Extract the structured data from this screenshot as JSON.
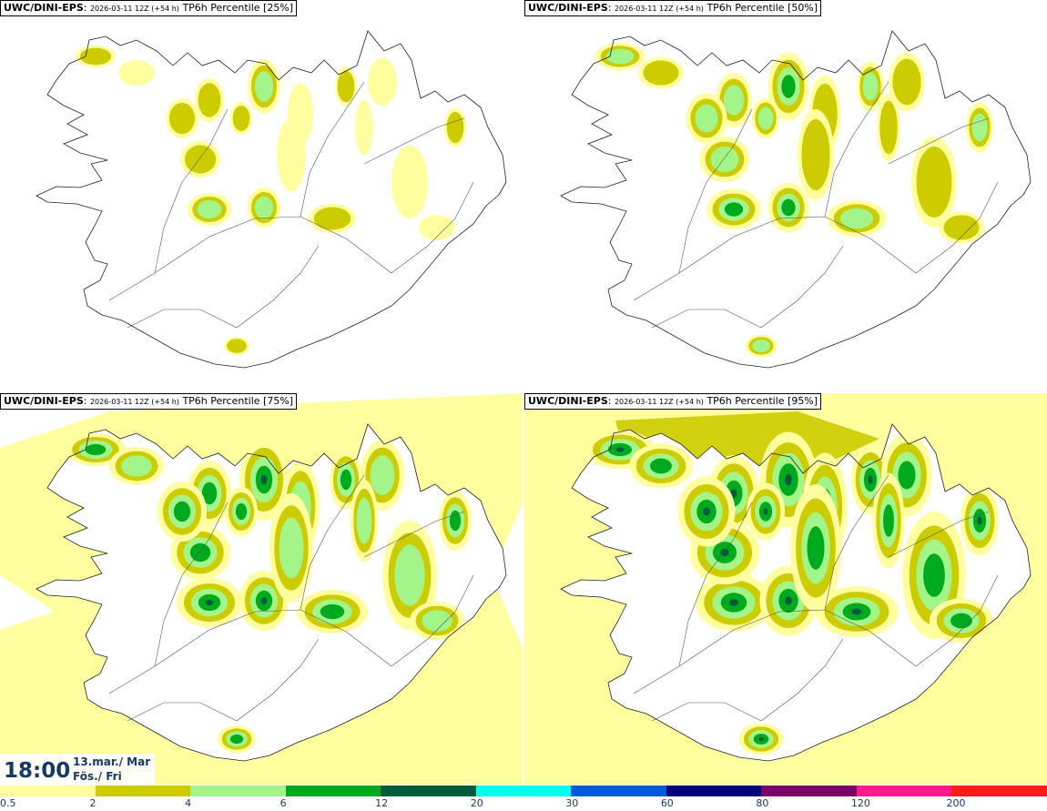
{
  "panels": [
    {
      "model": "UWC/DINI-EPS",
      "run": "2026-03-11 12Z (+54 h)",
      "field": "TP6h Percentile [25%]",
      "coverage": 0.25
    },
    {
      "model": "UWC/DINI-EPS",
      "run": "2026-03-11 12Z (+54 h)",
      "field": "TP6h Percentile [50%]",
      "coverage": 0.5
    },
    {
      "model": "UWC/DINI-EPS",
      "run": "2026-03-11 12Z (+54 h)",
      "field": "TP6h Percentile [75%]",
      "coverage": 0.75
    },
    {
      "model": "UWC/DINI-EPS",
      "run": "2026-03-11 12Z (+54 h)",
      "field": "TP6h Percentile [95%]",
      "coverage": 0.95
    }
  ],
  "valid_time": {
    "time": "18:00",
    "date": "13.mar./ Mar",
    "weekday": "Fös./ Fri"
  },
  "colorbar": {
    "levels": [
      "0.5",
      "2",
      "4",
      "6",
      "12",
      "20",
      "30",
      "60",
      "80",
      "120",
      "200"
    ],
    "colors": [
      "#ffff9f",
      "#cccc00",
      "#a3f58a",
      "#00aa1e",
      "#005b3b",
      "#00ffee",
      "#0059d9",
      "#00007a",
      "#7a0066",
      "#ff1a8c",
      "#ff1a1a"
    ]
  },
  "colors": {
    "land": "#ffffff",
    "coast": "#222222",
    "roads": "#555555",
    "label_text": "#163a63"
  }
}
